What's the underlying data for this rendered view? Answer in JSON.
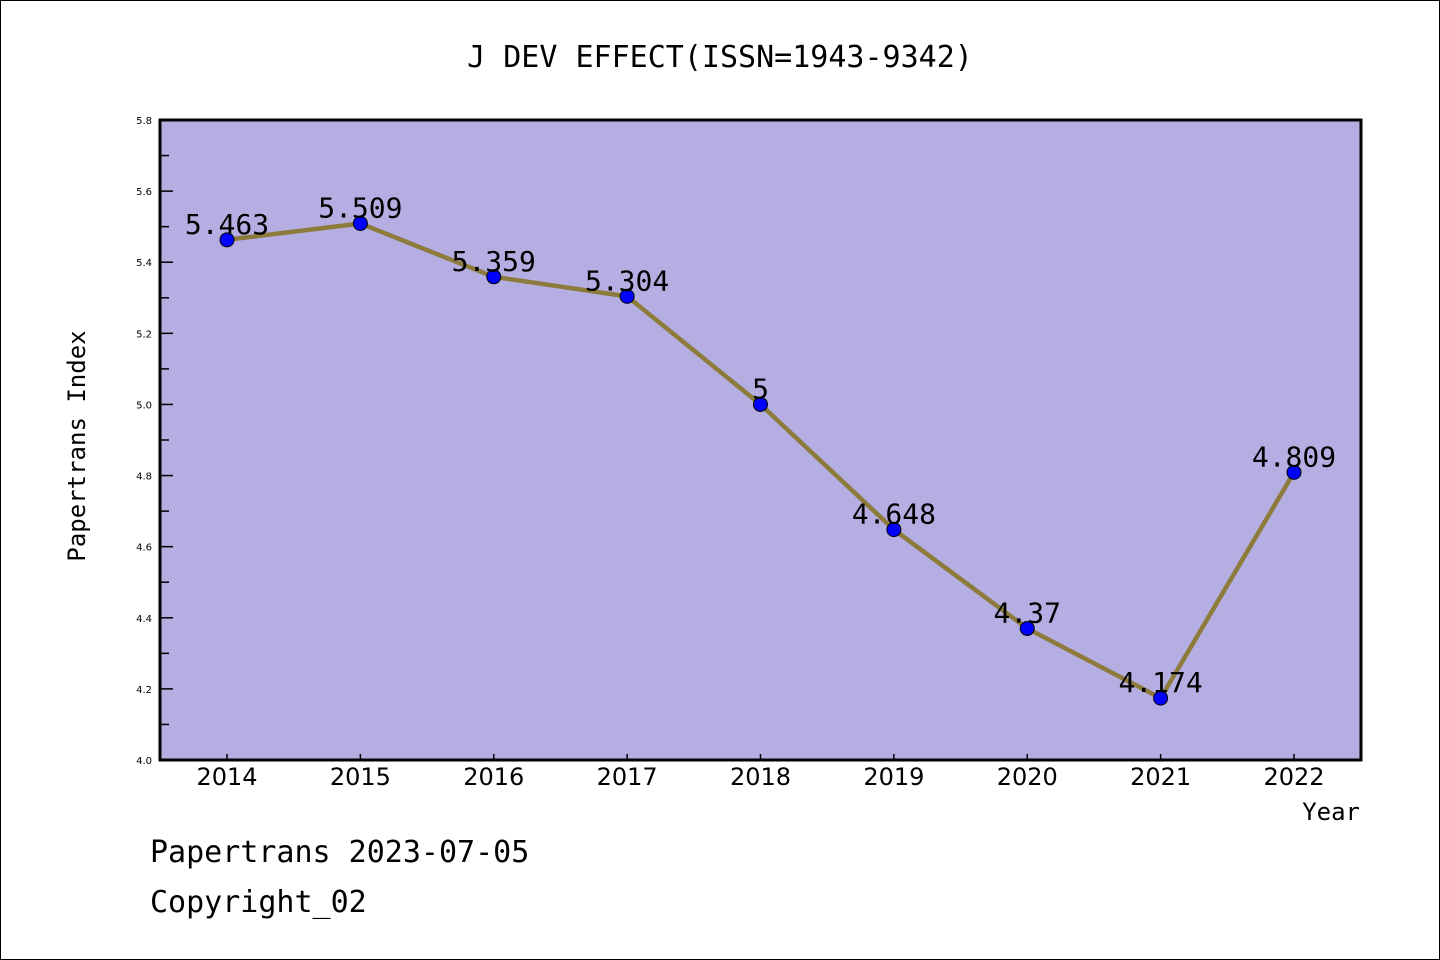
{
  "chart_data": {
    "type": "line",
    "title": "J DEV EFFECT(ISSN=1943-9342)",
    "xlabel": "Year",
    "ylabel": "Papertrans Index",
    "categories": [
      "2014",
      "2015",
      "2016",
      "2017",
      "2018",
      "2019",
      "2020",
      "2021",
      "2022"
    ],
    "values": [
      5.463,
      5.509,
      5.359,
      5.304,
      5,
      4.648,
      4.37,
      4.174,
      4.809
    ],
    "data_labels": [
      "5.463",
      "5.509",
      "5.359",
      "5.304",
      "5",
      "4.648",
      "4.37",
      "4.174",
      "4.809"
    ],
    "ylim": [
      4.0,
      5.8
    ],
    "yticks": [
      "4.0",
      "4.2",
      "4.4",
      "4.6",
      "4.8",
      "5.0",
      "5.2",
      "5.4",
      "5.6",
      "5.8"
    ],
    "grid": false,
    "colors": {
      "plot_bg": "#b5aee2",
      "line": "#8c7b3a",
      "marker": "#0000ff"
    }
  },
  "footer": {
    "line1": "Papertrans 2023-07-05",
    "line2": "Copyright_02"
  }
}
